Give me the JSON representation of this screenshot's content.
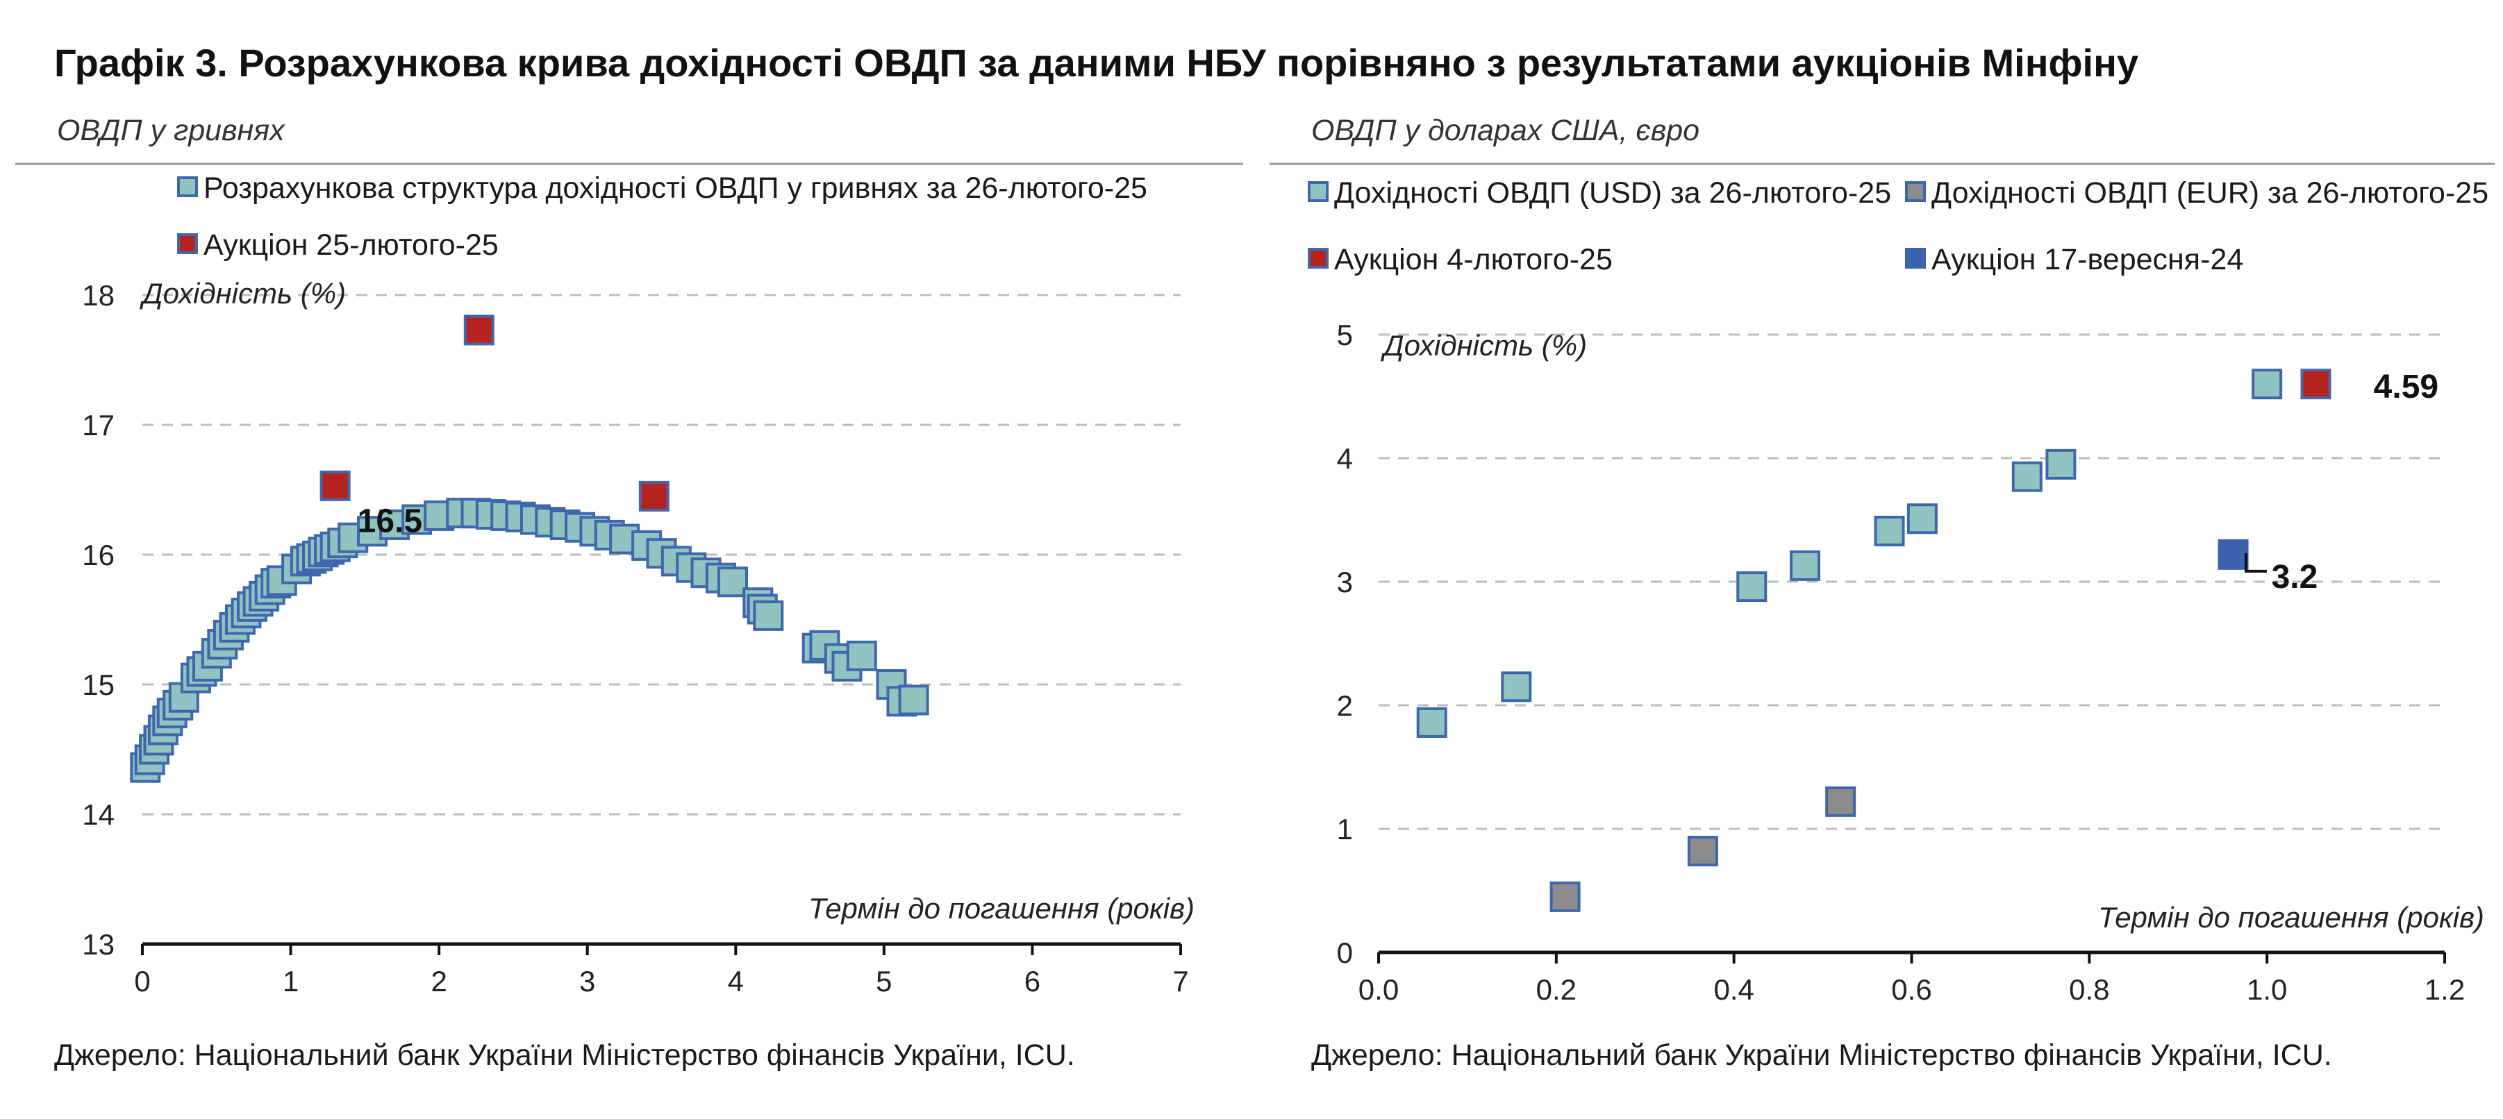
{
  "title": "Графік 3. Розрахункова крива дохідності ОВДП за даними НБУ порівняно з результатами аукціонів Мінфіну",
  "colors": {
    "teal_fill": "#8fc4c1",
    "teal_stroke": "#3e67ad",
    "red_fill": "#b5231f",
    "red_stroke": "#4466aa",
    "gray_fill": "#8c8c8c",
    "blue_fill": "#3b63ae",
    "grid": "#bdbdbd",
    "axis": "#111111"
  },
  "panels": [
    {
      "subtitle": "ОВДП у гривнях",
      "source": "Джерело: Національний банк України Міністерство фінансів України, ICU."
    },
    {
      "subtitle": "ОВДП у доларах США, євро",
      "source": "Джерело: Національний банк України Міністерство фінансів України, ICU."
    }
  ],
  "chart_data": [
    {
      "type": "scatter",
      "subtitle": "ОВДП у гривнях",
      "ylabel": "Дохідність (%)",
      "xlabel": "Термін до погашення (років)",
      "xlim": [
        0,
        7
      ],
      "ylim": [
        13,
        18
      ],
      "xticks": [
        0,
        1,
        2,
        3,
        4,
        5,
        6,
        7
      ],
      "yticks": [
        13,
        14,
        15,
        16,
        17,
        18
      ],
      "grid": true,
      "legend_position": "top-left",
      "series": [
        {
          "name": "Розрахункова структура дохідності ОВДП у гривнях за 26-лютого-25",
          "marker": "teal",
          "points": [
            [
              0.02,
              14.36
            ],
            [
              0.05,
              14.42
            ],
            [
              0.08,
              14.5
            ],
            [
              0.11,
              14.57
            ],
            [
              0.14,
              14.65
            ],
            [
              0.17,
              14.72
            ],
            [
              0.2,
              14.78
            ],
            [
              0.24,
              14.84
            ],
            [
              0.28,
              14.9
            ],
            [
              0.36,
              15.05
            ],
            [
              0.4,
              15.1
            ],
            [
              0.44,
              15.14
            ],
            [
              0.5,
              15.24
            ],
            [
              0.54,
              15.31
            ],
            [
              0.58,
              15.38
            ],
            [
              0.62,
              15.44
            ],
            [
              0.66,
              15.5
            ],
            [
              0.7,
              15.55
            ],
            [
              0.74,
              15.6
            ],
            [
              0.78,
              15.64
            ],
            [
              0.82,
              15.68
            ],
            [
              0.86,
              15.73
            ],
            [
              0.9,
              15.78
            ],
            [
              0.94,
              15.8
            ],
            [
              1.04,
              15.89
            ],
            [
              1.1,
              15.95
            ],
            [
              1.14,
              15.97
            ],
            [
              1.18,
              15.99
            ],
            [
              1.22,
              16.02
            ],
            [
              1.26,
              16.04
            ],
            [
              1.3,
              16.06
            ],
            [
              1.35,
              16.09
            ],
            [
              1.42,
              16.13
            ],
            [
              1.55,
              16.18
            ],
            [
              1.7,
              16.23
            ],
            [
              1.85,
              16.27
            ],
            [
              2.0,
              16.3
            ],
            [
              2.15,
              16.32
            ],
            [
              2.25,
              16.32
            ],
            [
              2.35,
              16.31
            ],
            [
              2.45,
              16.3
            ],
            [
              2.55,
              16.29
            ],
            [
              2.65,
              16.27
            ],
            [
              2.75,
              16.25
            ],
            [
              2.85,
              16.23
            ],
            [
              2.95,
              16.21
            ],
            [
              3.05,
              16.18
            ],
            [
              3.15,
              16.15
            ],
            [
              3.25,
              16.12
            ],
            [
              3.4,
              16.07
            ],
            [
              3.5,
              16.01
            ],
            [
              3.6,
              15.95
            ],
            [
              3.7,
              15.9
            ],
            [
              3.8,
              15.86
            ],
            [
              3.9,
              15.82
            ],
            [
              3.98,
              15.79
            ],
            [
              4.15,
              15.63
            ],
            [
              4.18,
              15.58
            ],
            [
              4.22,
              15.53
            ],
            [
              4.55,
              15.28
            ],
            [
              4.6,
              15.3
            ],
            [
              4.7,
              15.2
            ],
            [
              4.75,
              15.14
            ],
            [
              4.85,
              15.22
            ],
            [
              5.05,
              15.0
            ],
            [
              5.12,
              14.87
            ],
            [
              5.2,
              14.88
            ]
          ]
        },
        {
          "name": "Аукціон 25-лютого-25",
          "marker": "red",
          "points": [
            [
              1.3,
              16.53
            ],
            [
              2.27,
              17.73
            ],
            [
              3.45,
              16.45
            ]
          ]
        }
      ],
      "annotations": [
        {
          "text": "16.5",
          "x": 1.45,
          "y": 16.27
        }
      ]
    },
    {
      "type": "scatter",
      "subtitle": "ОВДП у доларах США, євро",
      "ylabel": "Дохідність (%)",
      "xlabel": "Термін до погашення (років)",
      "xlim": [
        0,
        1.2
      ],
      "ylim": [
        0,
        5
      ],
      "xticks": [
        "0.0",
        "0.2",
        "0.4",
        "0.6",
        "0.8",
        "1.0",
        "1.2"
      ],
      "yticks": [
        0,
        1,
        2,
        3,
        4,
        5
      ],
      "grid": true,
      "legend_position": "top",
      "series": [
        {
          "name": "Дохідності ОВДП (USD) за 26-лютого-25",
          "marker": "teal",
          "points": [
            [
              0.06,
              1.86
            ],
            [
              0.155,
              2.15
            ],
            [
              0.42,
              2.96
            ],
            [
              0.48,
              3.13
            ],
            [
              0.575,
              3.41
            ],
            [
              0.612,
              3.51
            ],
            [
              0.73,
              3.85
            ],
            [
              0.768,
              3.95
            ],
            [
              1.0,
              4.6
            ]
          ]
        },
        {
          "name": "Дохідності ОВДП (EUR) за 26-лютого-25",
          "marker": "gray",
          "points": [
            [
              0.21,
              0.45
            ],
            [
              0.365,
              0.82
            ],
            [
              0.52,
              1.22
            ]
          ]
        },
        {
          "name": "Аукціон 4-лютого-25",
          "marker": "red",
          "points": [
            [
              1.055,
              4.6
            ]
          ]
        },
        {
          "name": "Аукціон 17-вересня-24",
          "marker": "blue",
          "points": [
            [
              0.962,
              3.22
            ]
          ]
        }
      ],
      "annotations": [
        {
          "text": "4.59",
          "x": 1.12,
          "y": 4.59
        },
        {
          "text": "3.2",
          "x": 1.005,
          "y": 3.05
        }
      ]
    }
  ]
}
